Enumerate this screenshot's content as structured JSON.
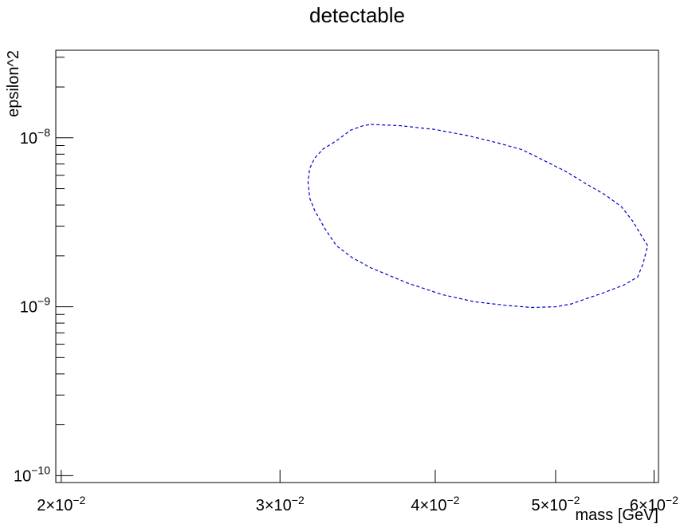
{
  "chart_data": {
    "type": "line",
    "title": "detectable",
    "xlabel": "mass [GeV]",
    "ylabel": "epsilon^2",
    "x_scale": "log",
    "y_scale": "log",
    "xlim": [
      0.0198,
      0.0605
    ],
    "ylim": [
      9.1e-11,
      3.3e-08
    ],
    "grid": false,
    "x_ticks": [
      {
        "value": 0.02,
        "mantissa": "2",
        "exponent": "-2"
      },
      {
        "value": 0.03,
        "mantissa": "3",
        "exponent": "-2"
      },
      {
        "value": 0.04,
        "mantissa": "4",
        "exponent": "-2"
      },
      {
        "value": 0.05,
        "mantissa": "5",
        "exponent": "-2"
      },
      {
        "value": 0.06,
        "mantissa": "6",
        "exponent": "-2"
      }
    ],
    "y_ticks": [
      {
        "value": 1e-10,
        "base": "10",
        "exponent": "-10"
      },
      {
        "value": 1e-09,
        "base": "10",
        "exponent": "-9"
      },
      {
        "value": 1e-08,
        "base": "10",
        "exponent": "-8"
      }
    ],
    "series": [
      {
        "color": "#0000cc",
        "style": "dashed",
        "closed": true,
        "points": [
          [
            0.0355,
            1.2e-08
          ],
          [
            0.0375,
            1.18e-08
          ],
          [
            0.04,
            1.12e-08
          ],
          [
            0.0425,
            1.03e-08
          ],
          [
            0.045,
            9.3e-09
          ],
          [
            0.047,
            8.5e-09
          ],
          [
            0.049,
            7.3e-09
          ],
          [
            0.051,
            6.3e-09
          ],
          [
            0.053,
            5.3e-09
          ],
          [
            0.0548,
            4.6e-09
          ],
          [
            0.0565,
            3.9e-09
          ],
          [
            0.0577,
            3.2e-09
          ],
          [
            0.0585,
            2.7e-09
          ],
          [
            0.0593,
            2.3e-09
          ],
          [
            0.0588,
            1.8e-09
          ],
          [
            0.0582,
            1.5e-09
          ],
          [
            0.0568,
            1.35e-09
          ],
          [
            0.0545,
            1.2e-09
          ],
          [
            0.053,
            1.12e-09
          ],
          [
            0.0515,
            1.04e-09
          ],
          [
            0.05,
            1e-09
          ],
          [
            0.0478,
            9.9e-10
          ],
          [
            0.0455,
            1.02e-09
          ],
          [
            0.043,
            1.07e-09
          ],
          [
            0.0405,
            1.18e-09
          ],
          [
            0.038,
            1.38e-09
          ],
          [
            0.0355,
            1.7e-09
          ],
          [
            0.0343,
            1.95e-09
          ],
          [
            0.0333,
            2.3e-09
          ],
          [
            0.0326,
            2.9e-09
          ],
          [
            0.032,
            3.7e-09
          ],
          [
            0.0317,
            4.4e-09
          ],
          [
            0.0316,
            5.5e-09
          ],
          [
            0.0317,
            6.6e-09
          ],
          [
            0.032,
            7.6e-09
          ],
          [
            0.0325,
            8.6e-09
          ],
          [
            0.0333,
            9.6e-09
          ],
          [
            0.0342,
            1.11e-08
          ],
          [
            0.035,
            1.18e-08
          ],
          [
            0.0355,
            1.2e-08
          ]
        ]
      }
    ]
  }
}
